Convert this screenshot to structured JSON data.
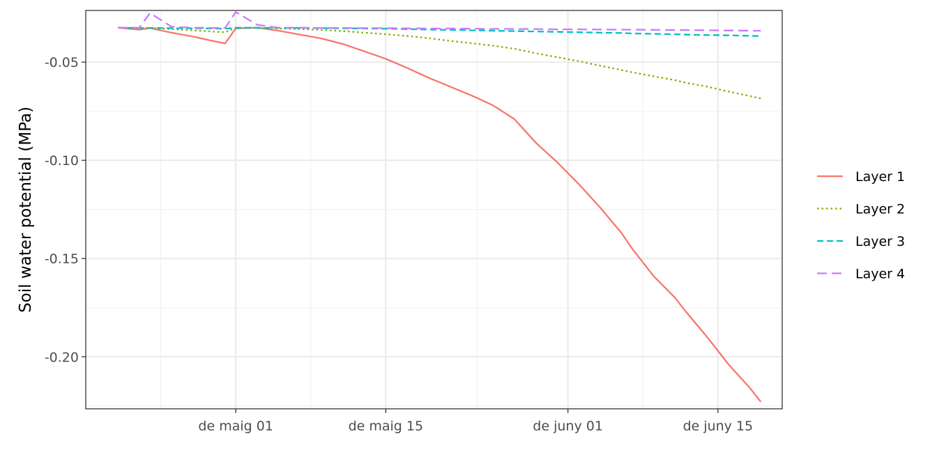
{
  "chart_data": {
    "type": "line",
    "title": "",
    "xlabel": "",
    "ylabel": "Soil water potential (MPa)",
    "x_tick_labels": [
      "de maig 01",
      "de maig 15",
      "de juny 01",
      "de juny 15"
    ],
    "y_tick_labels": [
      "-0.05",
      "-0.10",
      "-0.15",
      "-0.20"
    ],
    "y_ticks": [
      -0.05,
      -0.1,
      -0.15,
      -0.2
    ],
    "ylim": [
      -0.2265,
      -0.0237
    ],
    "xlim": [
      "2021-04-17",
      "2021-06-21"
    ],
    "x_tick_dates": [
      "2021-05-01",
      "2021-05-15",
      "2021-06-01",
      "2021-06-15"
    ],
    "grid": true,
    "legend_position": "right",
    "x": [
      "2021-04-20",
      "2021-04-22",
      "2021-04-23",
      "2021-04-25",
      "2021-04-27",
      "2021-04-29",
      "2021-04-30",
      "2021-05-01",
      "2021-05-03",
      "2021-05-05",
      "2021-05-07",
      "2021-05-09",
      "2021-05-11",
      "2021-05-13",
      "2021-05-15",
      "2021-05-17",
      "2021-05-19",
      "2021-05-21",
      "2021-05-23",
      "2021-05-25",
      "2021-05-27",
      "2021-05-29",
      "2021-05-31",
      "2021-06-02",
      "2021-06-04",
      "2021-06-06",
      "2021-06-07",
      "2021-06-09",
      "2021-06-11",
      "2021-06-12",
      "2021-06-14",
      "2021-06-16",
      "2021-06-18",
      "2021-06-19"
    ],
    "series": [
      {
        "name": "Layer 1",
        "color": "#F8766D",
        "dash": "solid",
        "values": [
          -0.0325,
          -0.0335,
          -0.0327,
          -0.035,
          -0.037,
          -0.0394,
          -0.0405,
          -0.0328,
          -0.0325,
          -0.034,
          -0.036,
          -0.038,
          -0.0408,
          -0.0445,
          -0.0483,
          -0.053,
          -0.058,
          -0.0625,
          -0.067,
          -0.072,
          -0.079,
          -0.091,
          -0.101,
          -0.112,
          -0.124,
          -0.137,
          -0.145,
          -0.159,
          -0.17,
          -0.177,
          -0.19,
          -0.204,
          -0.216,
          -0.223
        ]
      },
      {
        "name": "Layer 2",
        "color": "#7CAE00",
        "dash": "dotted",
        "values": [
          -0.0325,
          -0.0328,
          -0.0326,
          -0.0332,
          -0.0338,
          -0.0345,
          -0.0348,
          -0.0326,
          -0.0326,
          -0.0329,
          -0.0332,
          -0.0336,
          -0.0342,
          -0.035,
          -0.0358,
          -0.0367,
          -0.0378,
          -0.0392,
          -0.0404,
          -0.0416,
          -0.0432,
          -0.0455,
          -0.0475,
          -0.0495,
          -0.0518,
          -0.054,
          -0.0552,
          -0.0572,
          -0.0592,
          -0.0605,
          -0.0625,
          -0.065,
          -0.0673,
          -0.0685
        ]
      },
      {
        "name": "Layer 3",
        "color": "#00BFC4",
        "dash": "dashed",
        "values": [
          -0.0325,
          -0.0326,
          -0.0326,
          -0.0327,
          -0.0328,
          -0.0329,
          -0.033,
          -0.0325,
          -0.0325,
          -0.0326,
          -0.0326,
          -0.0327,
          -0.0328,
          -0.0329,
          -0.033,
          -0.0332,
          -0.0334,
          -0.0336,
          -0.0338,
          -0.034,
          -0.0342,
          -0.0344,
          -0.0346,
          -0.0348,
          -0.035,
          -0.0352,
          -0.0354,
          -0.0356,
          -0.0358,
          -0.036,
          -0.0362,
          -0.0364,
          -0.0366,
          -0.0368
        ]
      },
      {
        "name": "Layer 4",
        "color": "#C77CFF",
        "dash": "longdash",
        "values": [
          -0.0325,
          -0.0325,
          -0.025,
          -0.032,
          -0.0325,
          -0.0326,
          -0.0326,
          -0.0245,
          -0.031,
          -0.0325,
          -0.0325,
          -0.0326,
          -0.0326,
          -0.0327,
          -0.0327,
          -0.0328,
          -0.0329,
          -0.0329,
          -0.033,
          -0.0331,
          -0.0331,
          -0.0332,
          -0.0333,
          -0.0333,
          -0.0334,
          -0.0335,
          -0.0335,
          -0.0336,
          -0.0337,
          -0.0337,
          -0.0338,
          -0.0339,
          -0.034,
          -0.034
        ]
      }
    ]
  }
}
